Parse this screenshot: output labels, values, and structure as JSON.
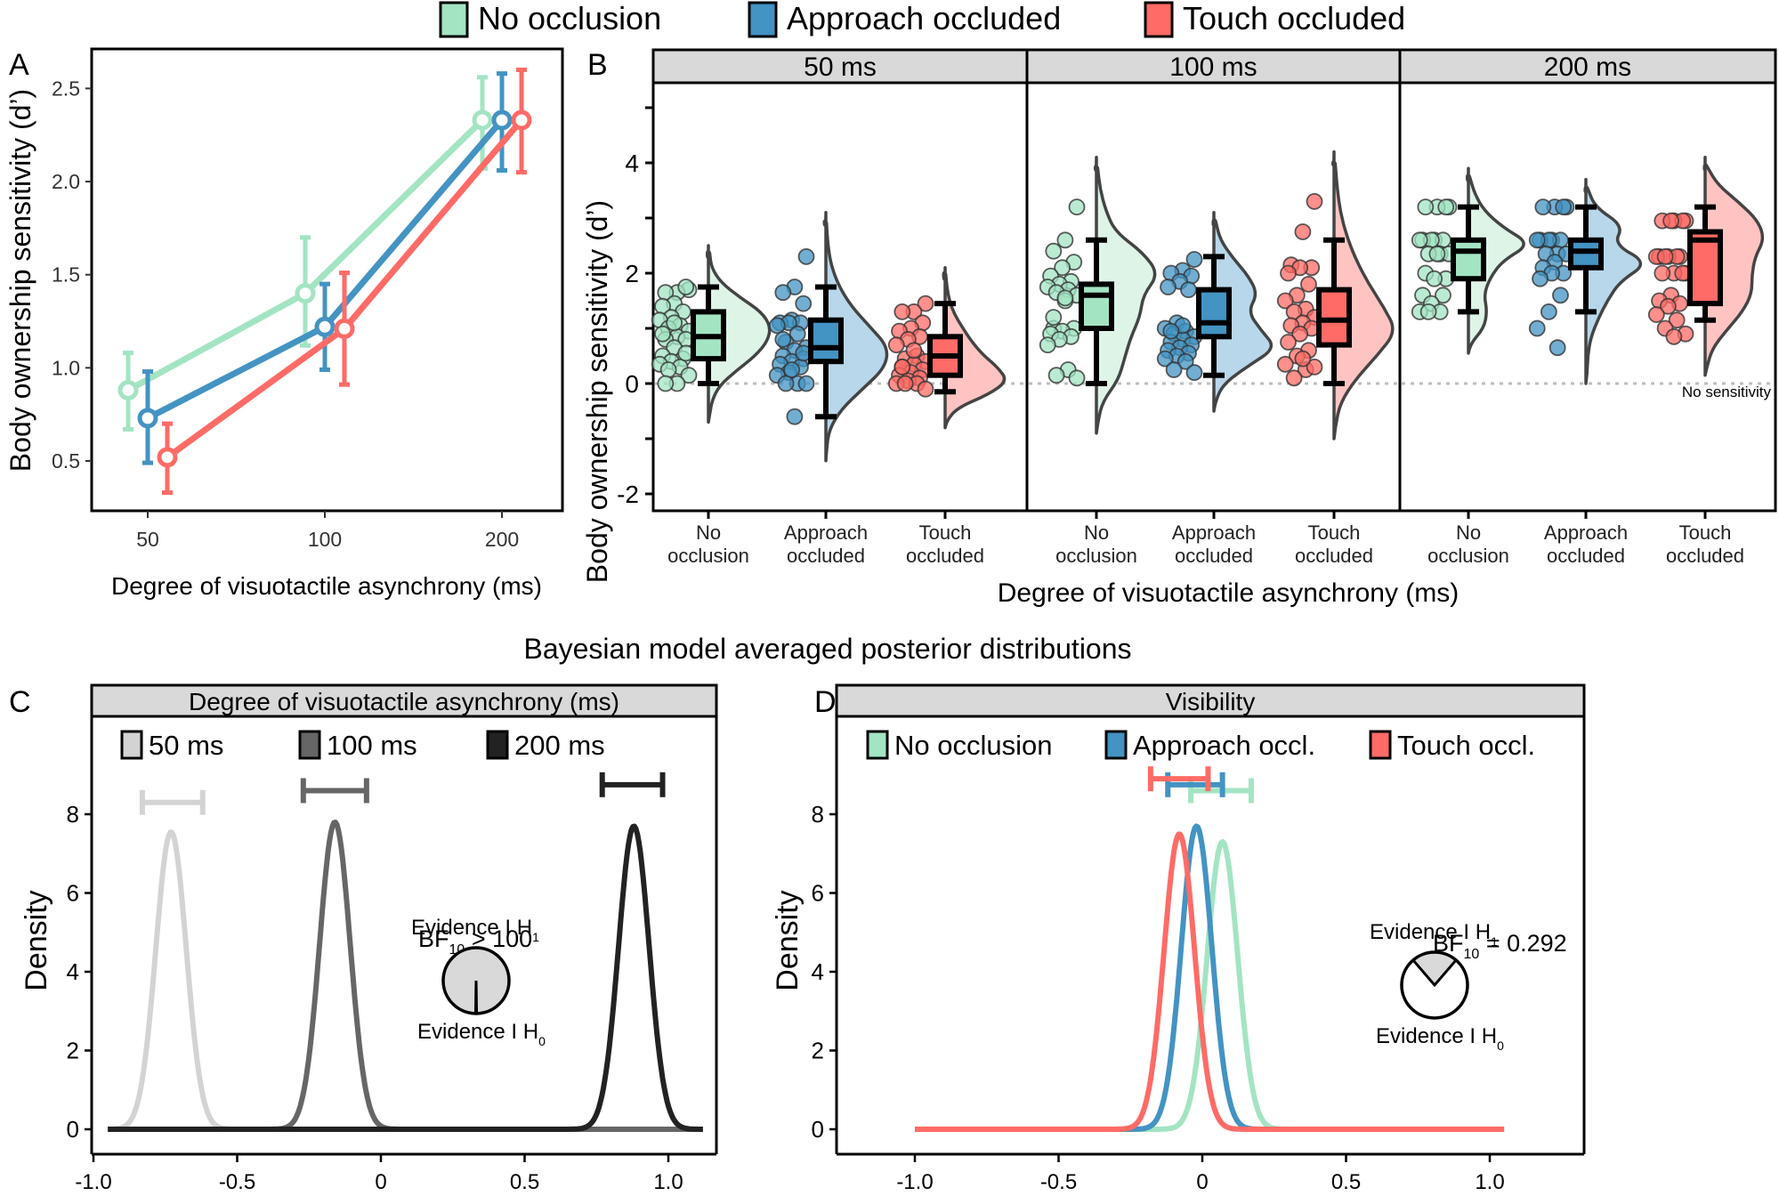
{
  "colors": {
    "no_occlusion": "#A3E4C3",
    "approach_occluded": "#4393C3",
    "touch_occluded": "#FF6B66",
    "no_occlusion_violin": "#DDF4E7",
    "approach_occluded_violin": "#B8D7EA",
    "touch_occluded_violin": "#FFC4C2",
    "ms50": "#D3D3D3",
    "ms100": "#666666",
    "ms200": "#222222",
    "strip": "#D9D9D9",
    "no_sensitivity": "#D9534F"
  },
  "top_legend": {
    "items": [
      {
        "label": "No occlusion",
        "color_key": "no_occlusion"
      },
      {
        "label": "Approach occluded",
        "color_key": "approach_occluded"
      },
      {
        "label": "Touch occluded",
        "color_key": "touch_occluded"
      }
    ]
  },
  "section_title": "Bayesian model averaged posterior distributions",
  "chart_data": [
    {
      "panel": "A",
      "type": "line",
      "title": "",
      "xlabel": "Degree of visuotactile asynchrony (ms)",
      "ylabel": "Body ownership sensitivity (d’)",
      "categories": [
        "50",
        "100",
        "200"
      ],
      "yticks": [
        "0.5",
        "1.0",
        "1.5",
        "2.0",
        "2.5"
      ],
      "ylim": [
        0.27,
        2.72
      ],
      "grid": false,
      "series": [
        {
          "name": "No occlusion",
          "color_key": "no_occlusion",
          "values": [
            0.88,
            1.4,
            2.33
          ],
          "lower": [
            0.67,
            1.12,
            2.07
          ],
          "upper": [
            1.08,
            1.7,
            2.56
          ]
        },
        {
          "name": "Approach occluded",
          "color_key": "approach_occluded",
          "values": [
            0.73,
            1.22,
            2.33
          ],
          "lower": [
            0.49,
            0.99,
            2.06
          ],
          "upper": [
            0.98,
            1.45,
            2.58
          ]
        },
        {
          "name": "Touch occluded",
          "color_key": "touch_occluded",
          "values": [
            0.52,
            1.21,
            2.33
          ],
          "lower": [
            0.33,
            0.91,
            2.05
          ],
          "upper": [
            0.7,
            1.51,
            2.6
          ]
        }
      ]
    },
    {
      "panel": "B",
      "type": "box",
      "xlabel": "Degree of visuotactile asynchrony (ms)",
      "ylabel": "Body ownership sensitivity (d’)",
      "ylim": [
        -2.3,
        5.6
      ],
      "yticks": [
        -2,
        -1,
        0,
        1,
        2,
        3,
        4,
        5
      ],
      "ytick_labels": {
        "-2": "-2",
        "0": "0",
        "2": "2",
        "4": "4"
      },
      "reference_line": {
        "y": 0,
        "label": "No sensitivity"
      },
      "category_labels": [
        [
          "No",
          "occlusion"
        ],
        [
          "Approach",
          "occluded"
        ],
        [
          "Touch",
          "occluded"
        ]
      ],
      "facets": [
        {
          "label": "50 ms",
          "groups": [
            {
              "name": "No occlusion",
              "color_key": "no_occlusion",
              "whisker_low": 0.0,
              "q1": 0.45,
              "median": 0.85,
              "q3": 1.3,
              "whisker_high": 1.75,
              "violin": {
                "min": -0.7,
                "max": 2.5,
                "peak": 1.1,
                "shape": [
                  0.02,
                  0.06,
                  0.18,
                  0.45,
                  0.75,
                  0.95,
                  1.0,
                  0.85,
                  0.5,
                  0.2,
                  0.05,
                  0.02
                ]
              },
              "points": [
                1.7,
                1.65,
                1.65,
                1.75,
                1.45,
                1.4,
                1.3,
                1.2,
                1.15,
                1.05,
                1.0,
                0.95,
                0.85,
                0.8,
                0.8,
                0.65,
                0.5,
                0.45,
                0.4,
                0.35,
                0.3,
                0.25,
                0.15,
                0.0,
                0.0,
                0.55,
                1.1,
                0.9
              ]
            },
            {
              "name": "Approach occluded",
              "color_key": "approach_occluded",
              "whisker_low": -0.6,
              "q1": 0.4,
              "median": 0.65,
              "q3": 1.15,
              "whisker_high": 1.75,
              "violin": {
                "min": -1.4,
                "max": 3.1,
                "peak": 0.5,
                "shape": [
                  0.01,
                  0.05,
                  0.25,
                  0.6,
                  0.95,
                  1.0,
                  0.7,
                  0.4,
                  0.2,
                  0.08,
                  0.03,
                  0.01
                ]
              },
              "points": [
                2.3,
                1.75,
                1.65,
                1.45,
                1.15,
                1.1,
                1.1,
                1.1,
                1.05,
                0.9,
                0.75,
                0.65,
                0.6,
                0.5,
                0.45,
                0.4,
                0.35,
                0.3,
                0.2,
                0.15,
                0.0,
                0.0,
                0.0,
                -0.6,
                0.8,
                0.55,
                0.25
              ]
            },
            {
              "name": "Touch occluded",
              "color_key": "touch_occluded",
              "whisker_low": -0.15,
              "q1": 0.15,
              "median": 0.5,
              "q3": 0.85,
              "whisker_high": 1.45,
              "violin": {
                "min": -0.8,
                "max": 2.1,
                "peak": 0.2,
                "shape": [
                  0.02,
                  0.2,
                  0.7,
                  1.0,
                  0.85,
                  0.6,
                  0.42,
                  0.28,
                  0.15,
                  0.07,
                  0.03,
                  0.01
                ]
              },
              "points": [
                1.45,
                1.3,
                1.3,
                1.1,
                1.0,
                0.95,
                0.85,
                0.8,
                0.7,
                0.5,
                0.45,
                0.4,
                0.35,
                0.3,
                0.25,
                0.2,
                0.15,
                0.1,
                0.05,
                0.0,
                0.0,
                0.0,
                -0.1,
                0.6,
                0.3
              ]
            }
          ]
        },
        {
          "label": "100 ms",
          "groups": [
            {
              "name": "No occlusion",
              "color_key": "no_occlusion",
              "whisker_low": 0.0,
              "q1": 1.0,
              "median": 1.6,
              "q3": 1.8,
              "whisker_high": 2.6,
              "violin": {
                "min": -0.9,
                "max": 4.1,
                "peak": 1.7,
                "shape": [
                  0.02,
                  0.1,
                  0.35,
                  0.45,
                  0.55,
                  0.7,
                  0.75,
                  1.0,
                  0.75,
                  0.3,
                  0.15,
                  0.06,
                  0.02
                ]
              },
              "points": [
                3.2,
                2.6,
                2.4,
                2.2,
                2.1,
                1.95,
                1.85,
                1.8,
                1.75,
                1.7,
                1.65,
                1.6,
                1.5,
                1.0,
                1.0,
                0.95,
                0.9,
                0.85,
                0.8,
                0.7,
                0.25,
                0.15,
                0.1,
                1.55,
                1.2
              ]
            },
            {
              "name": "Approach occluded",
              "color_key": "approach_occluded",
              "whisker_low": 0.15,
              "q1": 0.85,
              "median": 1.1,
              "q3": 1.7,
              "whisker_high": 2.3,
              "violin": {
                "min": -0.5,
                "max": 3.1,
                "peak": 1.0,
                "shape": [
                  0.02,
                  0.15,
                  0.55,
                  1.0,
                  0.75,
                  0.55,
                  0.7,
                  0.55,
                  0.3,
                  0.1,
                  0.03
                ]
              },
              "points": [
                2.25,
                2.05,
                2.0,
                1.95,
                1.85,
                1.75,
                1.7,
                1.1,
                1.0,
                0.95,
                0.9,
                0.85,
                0.8,
                0.75,
                0.7,
                0.65,
                0.6,
                0.55,
                0.5,
                0.45,
                0.4,
                0.25,
                0.2,
                1.05,
                0.95
              ]
            },
            {
              "name": "Touch occluded",
              "color_key": "touch_occluded",
              "whisker_low": 0.0,
              "q1": 0.7,
              "median": 1.15,
              "q3": 1.7,
              "whisker_high": 2.6,
              "violin": {
                "min": -1.0,
                "max": 4.2,
                "peak": 1.2,
                "shape": [
                  0.02,
                  0.1,
                  0.35,
                  0.7,
                  1.0,
                  0.8,
                  0.55,
                  0.35,
                  0.2,
                  0.1,
                  0.05,
                  0.02
                ]
              },
              "points": [
                3.3,
                2.75,
                2.15,
                2.1,
                2.1,
                2.0,
                1.8,
                1.6,
                1.5,
                1.35,
                1.3,
                1.2,
                1.1,
                1.05,
                1.0,
                0.9,
                0.75,
                0.6,
                0.5,
                0.35,
                0.25,
                0.1,
                0.3,
                0.45
              ]
            }
          ]
        },
        {
          "label": "200 ms",
          "groups": [
            {
              "name": "No occlusion",
              "color_key": "no_occlusion",
              "whisker_low": 1.3,
              "q1": 1.9,
              "median": 2.4,
              "q3": 2.6,
              "whisker_high": 3.2,
              "violin": {
                "min": 0.55,
                "max": 3.9,
                "peak": 2.5,
                "shape": [
                  0.02,
                  0.25,
                  0.3,
                  0.25,
                  0.35,
                  0.55,
                  1.0,
                  0.55,
                  0.25,
                  0.1,
                  0.02
                ]
              },
              "points": [
                3.2,
                3.2,
                3.2,
                3.2,
                2.6,
                2.6,
                2.6,
                2.6,
                2.6,
                2.35,
                2.35,
                2.35,
                2.35,
                2.0,
                1.9,
                1.9,
                1.6,
                1.6,
                1.45,
                1.3,
                1.3,
                1.3
              ]
            },
            {
              "name": "Approach occluded",
              "color_key": "approach_occluded",
              "whisker_low": 1.3,
              "q1": 2.1,
              "median": 2.4,
              "q3": 2.6,
              "whisker_high": 3.2,
              "violin": {
                "min": 0.0,
                "max": 3.7,
                "peak": 2.5,
                "shape": [
                  0.02,
                  0.03,
                  0.08,
                  0.2,
                  0.35,
                  0.55,
                  1.0,
                  0.45,
                  0.6,
                  0.15,
                  0.03
                ]
              },
              "points": [
                3.2,
                3.2,
                3.2,
                3.2,
                2.6,
                2.6,
                2.6,
                2.6,
                2.6,
                2.35,
                2.35,
                2.35,
                2.2,
                2.1,
                2.0,
                2.0,
                1.9,
                1.6,
                1.3,
                1.0,
                0.65
              ]
            },
            {
              "name": "Touch occluded",
              "color_key": "touch_occluded",
              "whisker_low": 1.15,
              "q1": 1.45,
              "median": 2.6,
              "q3": 2.75,
              "whisker_high": 3.2,
              "violin": {
                "min": 0.15,
                "max": 4.1,
                "peak": 2.6,
                "shape": [
                  0.03,
                  0.12,
                  0.35,
                  0.6,
                  0.75,
                  0.75,
                  0.8,
                  0.95,
                  0.85,
                  0.55,
                  0.2,
                  0.03
                ]
              },
              "points": [
                2.95,
                2.95,
                2.95,
                2.95,
                2.95,
                2.3,
                2.3,
                2.3,
                2.3,
                2.3,
                2.3,
                2.0,
                2.0,
                2.0,
                2.0,
                1.6,
                1.5,
                1.45,
                1.4,
                1.25,
                1.15,
                1.0,
                0.9,
                0.85
              ]
            }
          ]
        }
      ]
    },
    {
      "panel": "C",
      "type": "line",
      "strip": "Degree of visuotactile asynchrony (ms)",
      "ylabel": "Density",
      "xlim": [
        -1.0,
        1.15
      ],
      "xticks": [
        "-1.0",
        "-0.5",
        "0",
        "0.5",
        "1.0"
      ],
      "yticks": [
        "0",
        "2",
        "4",
        "6",
        "8"
      ],
      "series": [
        {
          "name": "50 ms",
          "color_key": "ms50",
          "mean": -0.73,
          "peak_density": 7.55,
          "ci": [
            -0.83,
            -0.62
          ],
          "ci_y": 8.3
        },
        {
          "name": "100 ms",
          "color_key": "ms100",
          "mean": -0.16,
          "peak_density": 7.8,
          "ci": [
            -0.27,
            -0.05
          ],
          "ci_y": 8.6
        },
        {
          "name": "200 ms",
          "color_key": "ms200",
          "mean": 0.88,
          "peak_density": 7.7,
          "ci": [
            0.77,
            0.98
          ],
          "ci_y": 8.75
        }
      ],
      "annotation": {
        "bf_prefix": "BF",
        "bf_sub": "10",
        "bf_value": "> 100",
        "evidence_h1": "Evidence I H",
        "h1_sub": "1",
        "evidence_h0": "Evidence I H",
        "h0_sub": "0",
        "h1_proportion": 0.995
      }
    },
    {
      "panel": "D",
      "type": "line",
      "strip": "Visibility",
      "ylabel": "Density",
      "xlim": [
        -1.2,
        1.3
      ],
      "xticks": [
        "-1.0",
        "-0.5",
        "0",
        "0.5",
        "1.0"
      ],
      "yticks": [
        "0",
        "2",
        "4",
        "6",
        "8"
      ],
      "series": [
        {
          "name": "No occlusion",
          "legend_label": "No occlusion",
          "color_key": "no_occlusion",
          "mean": 0.07,
          "peak_density": 7.3,
          "ci": [
            -0.04,
            0.17
          ],
          "ci_y": 8.6
        },
        {
          "name": "Approach occluded",
          "legend_label": "Approach occl.",
          "color_key": "approach_occluded",
          "mean": -0.02,
          "peak_density": 7.7,
          "ci": [
            -0.12,
            0.07
          ],
          "ci_y": 8.75
        },
        {
          "name": "Touch occluded",
          "legend_label": "Touch occl.",
          "color_key": "touch_occluded",
          "mean": -0.08,
          "peak_density": 7.5,
          "ci": [
            -0.18,
            0.02
          ],
          "ci_y": 8.9
        }
      ],
      "annotation": {
        "bf_prefix": "BF",
        "bf_sub": "10",
        "bf_value": "= 0.292",
        "evidence_h1": "Evidence I H",
        "h1_sub": "1",
        "evidence_h0": "Evidence I H",
        "h0_sub": "0",
        "h1_proportion": 0.226
      }
    }
  ]
}
